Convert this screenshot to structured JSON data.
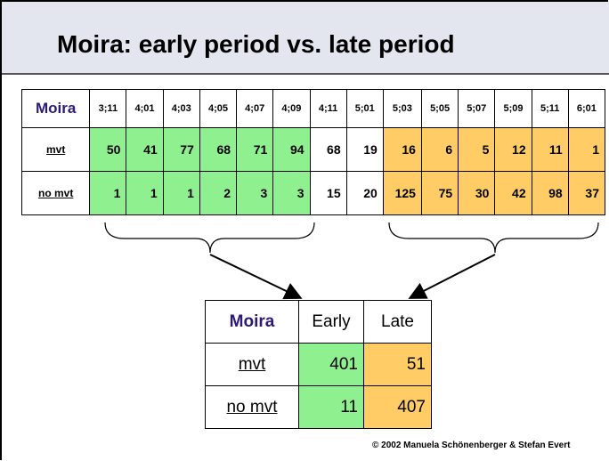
{
  "title": "Moira: early period vs. late period",
  "top_table": {
    "header": [
      "Moira",
      "3;11",
      "4;01",
      "4;03",
      "4;05",
      "4;07",
      "4;09",
      "4;11",
      "5;01",
      "5;03",
      "5;05",
      "5;07",
      "5;09",
      "5;11",
      "6;01"
    ],
    "rows": [
      [
        "mvt",
        "50",
        "41",
        "77",
        "68",
        "71",
        "94",
        "68",
        "19",
        "16",
        "6",
        "5",
        "12",
        "11",
        "1"
      ],
      [
        "no mvt",
        "1",
        "1",
        "1",
        "2",
        "3",
        "3",
        "15",
        "20",
        "125",
        "75",
        "30",
        "42",
        "98",
        "37"
      ]
    ]
  },
  "bottom_table": {
    "header": [
      "Moira",
      "Early",
      "Late"
    ],
    "rows": [
      [
        "mvt",
        "401",
        "51"
      ],
      [
        "no mvt",
        "11",
        "407"
      ]
    ]
  },
  "footer": "© 2002  Manuela Schönenberger  & Stefan Evert"
}
